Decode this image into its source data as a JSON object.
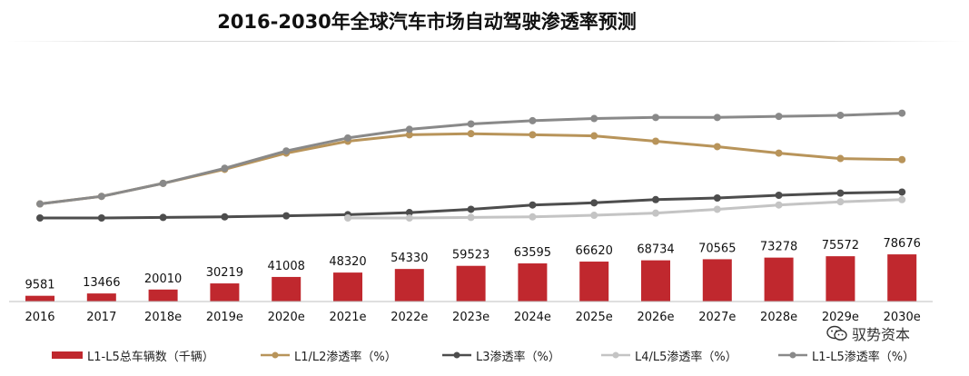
{
  "title": "2016-2030年全球汽车市场自动驾驶渗透率预测",
  "watermark": "驭势资本",
  "chart_data": {
    "type": "bar+line",
    "title": "2016-2030年全球汽车市场自动驾驶渗透率预测",
    "categories": [
      "2016",
      "2017",
      "2018e",
      "2019e",
      "2020e",
      "2021e",
      "2022e",
      "2023e",
      "2024e",
      "2025e",
      "2026e",
      "2027e",
      "2028e",
      "2029e",
      "2030e"
    ],
    "bars": {
      "name": "L1-L5总车辆数（千辆）",
      "color": "#c0282e",
      "values": [
        9581,
        13466,
        20010,
        30219,
        41008,
        48320,
        54330,
        59523,
        63595,
        66620,
        68734,
        70565,
        73278,
        75572,
        78676
      ]
    },
    "lines": [
      {
        "name": "L1/L2渗透率（%）",
        "color": "#b8945a",
        "values": [
          13,
          20,
          32,
          45,
          60,
          71,
          77,
          78,
          77,
          76,
          71,
          66,
          60,
          55,
          54
        ]
      },
      {
        "name": "L3渗透率（%）",
        "color": "#4d4d4d",
        "values": [
          0,
          0,
          0.5,
          1,
          2,
          3,
          5,
          8,
          12,
          14,
          17,
          18.5,
          21,
          23,
          24
        ]
      },
      {
        "name": "L4/L5渗透率（%）",
        "color": "#c4c4c4",
        "values": [
          null,
          null,
          null,
          null,
          null,
          0,
          0,
          0.5,
          1,
          2.5,
          4.5,
          8,
          12,
          15,
          17
        ]
      },
      {
        "name": "L1-L5渗透率（%）",
        "color": "#898989",
        "values": [
          13,
          20,
          32,
          46,
          62,
          74,
          82,
          87,
          90,
          92,
          93,
          93,
          94,
          95,
          97
        ]
      }
    ],
    "legend_position": "bottom",
    "grid": false
  }
}
